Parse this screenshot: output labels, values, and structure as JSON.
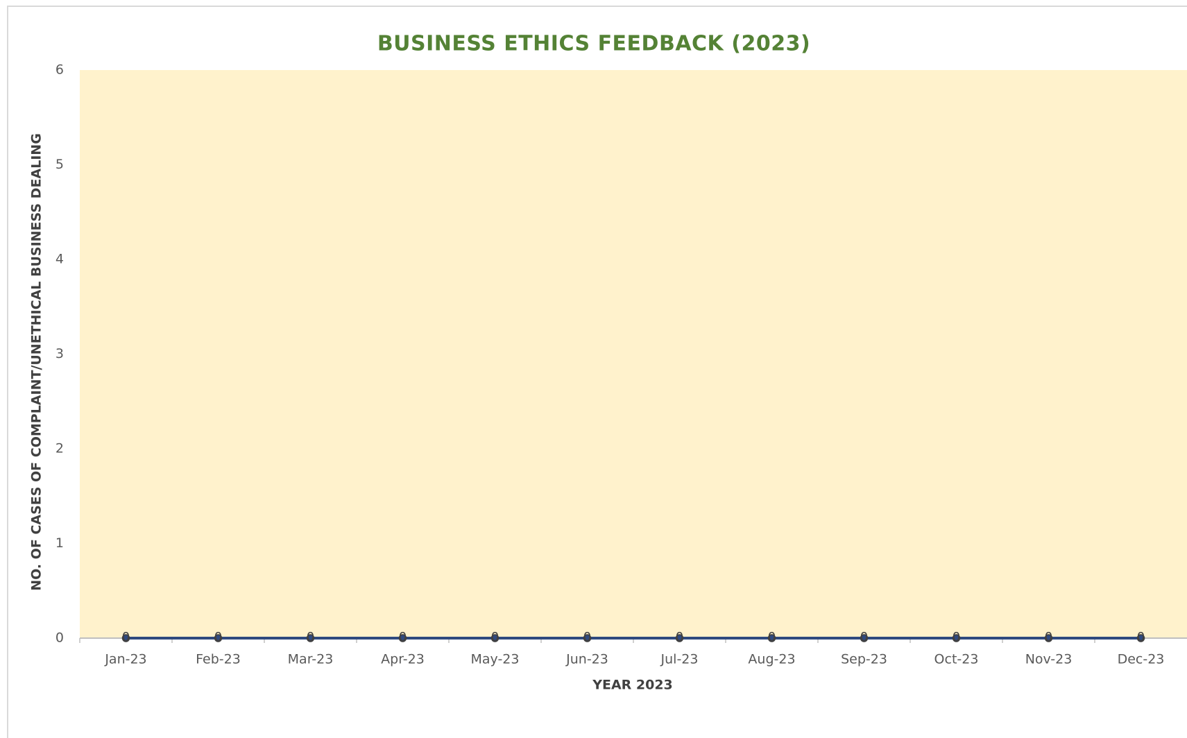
{
  "chart_data": {
    "type": "line",
    "title": "BUSINESS ETHICS FEEDBACK (2023)",
    "x_label": "YEAR 2023",
    "y_label": "NO. OF CASES OF COMPLAINT/UNETHICAL BUSINESS DEALING",
    "categories": [
      "Jan-23",
      "Feb-23",
      "Mar-23",
      "Apr-23",
      "May-23",
      "Jun-23",
      "Jul-23",
      "Aug-23",
      "Sep-23",
      "Oct-23",
      "Nov-23",
      "Dec-23"
    ],
    "series": [
      {
        "color": "#2f4a7f",
        "values": [
          0,
          0,
          0,
          0,
          0,
          0,
          0,
          0,
          0,
          0,
          0,
          0
        ]
      }
    ],
    "ylim": [
      0,
      6
    ],
    "yticks": [
      0,
      1,
      2,
      3,
      4,
      5,
      6
    ],
    "grid": false,
    "plot_background": "#fff2cc",
    "data_labels": true
  }
}
